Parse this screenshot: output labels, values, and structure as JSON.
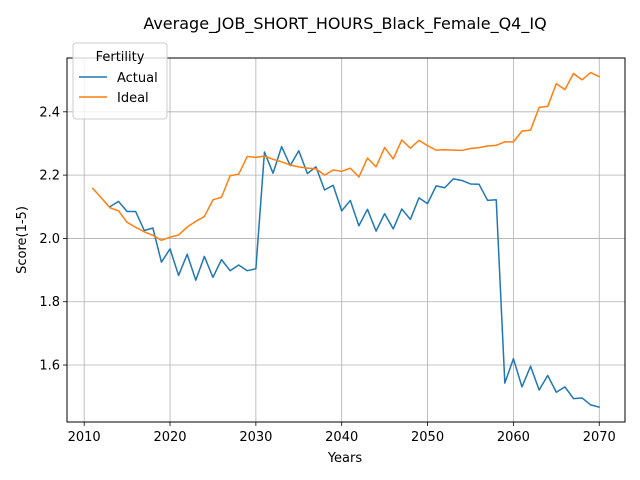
{
  "chart_data": {
    "type": "line",
    "title": "Average_JOB_SHORT_HOURS_Black_Female_Q4_IQ",
    "xlabel": "Years",
    "ylabel": "Score(1-5)",
    "xlim": [
      2008,
      2073
    ],
    "ylim": [
      1.42,
      2.57
    ],
    "xticks": [
      2010,
      2020,
      2030,
      2040,
      2050,
      2060,
      2070
    ],
    "yticks": [
      1.6,
      1.8,
      2.0,
      2.2,
      2.4
    ],
    "ytick_labels": [
      "1.6",
      "1.8",
      "2.0",
      "2.2",
      "2.4"
    ],
    "grid": true,
    "legend": {
      "title": "Fertility",
      "placement": "top-left"
    },
    "series": [
      {
        "name": "Actual",
        "color": "#1f77b4",
        "x": [
          2013,
          2014,
          2015,
          2016,
          2017,
          2018,
          2019,
          2020,
          2021,
          2022,
          2023,
          2024,
          2025,
          2026,
          2027,
          2028,
          2029,
          2030,
          2031,
          2032,
          2033,
          2034,
          2035,
          2036,
          2037,
          2038,
          2039,
          2040,
          2041,
          2042,
          2043,
          2044,
          2045,
          2046,
          2047,
          2048,
          2049,
          2050,
          2051,
          2052,
          2053,
          2054,
          2055,
          2056,
          2057,
          2058,
          2059,
          2060,
          2061,
          2062,
          2063,
          2064,
          2065,
          2066,
          2067,
          2068,
          2069,
          2070
        ],
        "values": [
          2.1,
          2.117,
          2.085,
          2.085,
          2.025,
          2.033,
          1.925,
          1.967,
          1.883,
          1.95,
          1.868,
          1.943,
          1.877,
          1.933,
          1.898,
          1.916,
          1.898,
          1.904,
          2.273,
          2.206,
          2.29,
          2.23,
          2.277,
          2.205,
          2.226,
          2.153,
          2.168,
          2.087,
          2.12,
          2.04,
          2.092,
          2.023,
          2.078,
          2.03,
          2.093,
          2.06,
          2.128,
          2.11,
          2.166,
          2.16,
          2.188,
          2.183,
          2.172,
          2.171,
          2.12,
          2.122,
          1.543,
          1.62,
          1.531,
          1.596,
          1.521,
          1.567,
          1.514,
          1.531,
          1.494,
          1.496,
          1.474,
          1.467
        ]
      },
      {
        "name": "Ideal",
        "color": "#ff7f0e",
        "x": [
          2011,
          2012,
          2013,
          2014,
          2015,
          2016,
          2017,
          2018,
          2019,
          2020,
          2021,
          2022,
          2023,
          2024,
          2025,
          2026,
          2027,
          2028,
          2029,
          2030,
          2031,
          2032,
          2033,
          2034,
          2035,
          2036,
          2037,
          2038,
          2039,
          2040,
          2041,
          2042,
          2043,
          2044,
          2045,
          2046,
          2047,
          2048,
          2049,
          2050,
          2051,
          2052,
          2053,
          2054,
          2055,
          2056,
          2057,
          2058,
          2059,
          2060,
          2061,
          2062,
          2063,
          2064,
          2065,
          2066,
          2067,
          2068,
          2069,
          2070
        ],
        "values": [
          2.158,
          2.128,
          2.097,
          2.087,
          2.051,
          2.035,
          2.021,
          2.01,
          1.994,
          2.004,
          2.011,
          2.036,
          2.054,
          2.069,
          2.122,
          2.13,
          2.198,
          2.203,
          2.259,
          2.256,
          2.26,
          2.25,
          2.242,
          2.232,
          2.226,
          2.222,
          2.22,
          2.2,
          2.216,
          2.212,
          2.222,
          2.194,
          2.254,
          2.226,
          2.287,
          2.251,
          2.311,
          2.285,
          2.31,
          2.293,
          2.279,
          2.28,
          2.279,
          2.278,
          2.284,
          2.287,
          2.292,
          2.294,
          2.305,
          2.305,
          2.339,
          2.342,
          2.414,
          2.417,
          2.489,
          2.47,
          2.521,
          2.501,
          2.524,
          2.511
        ]
      }
    ]
  }
}
